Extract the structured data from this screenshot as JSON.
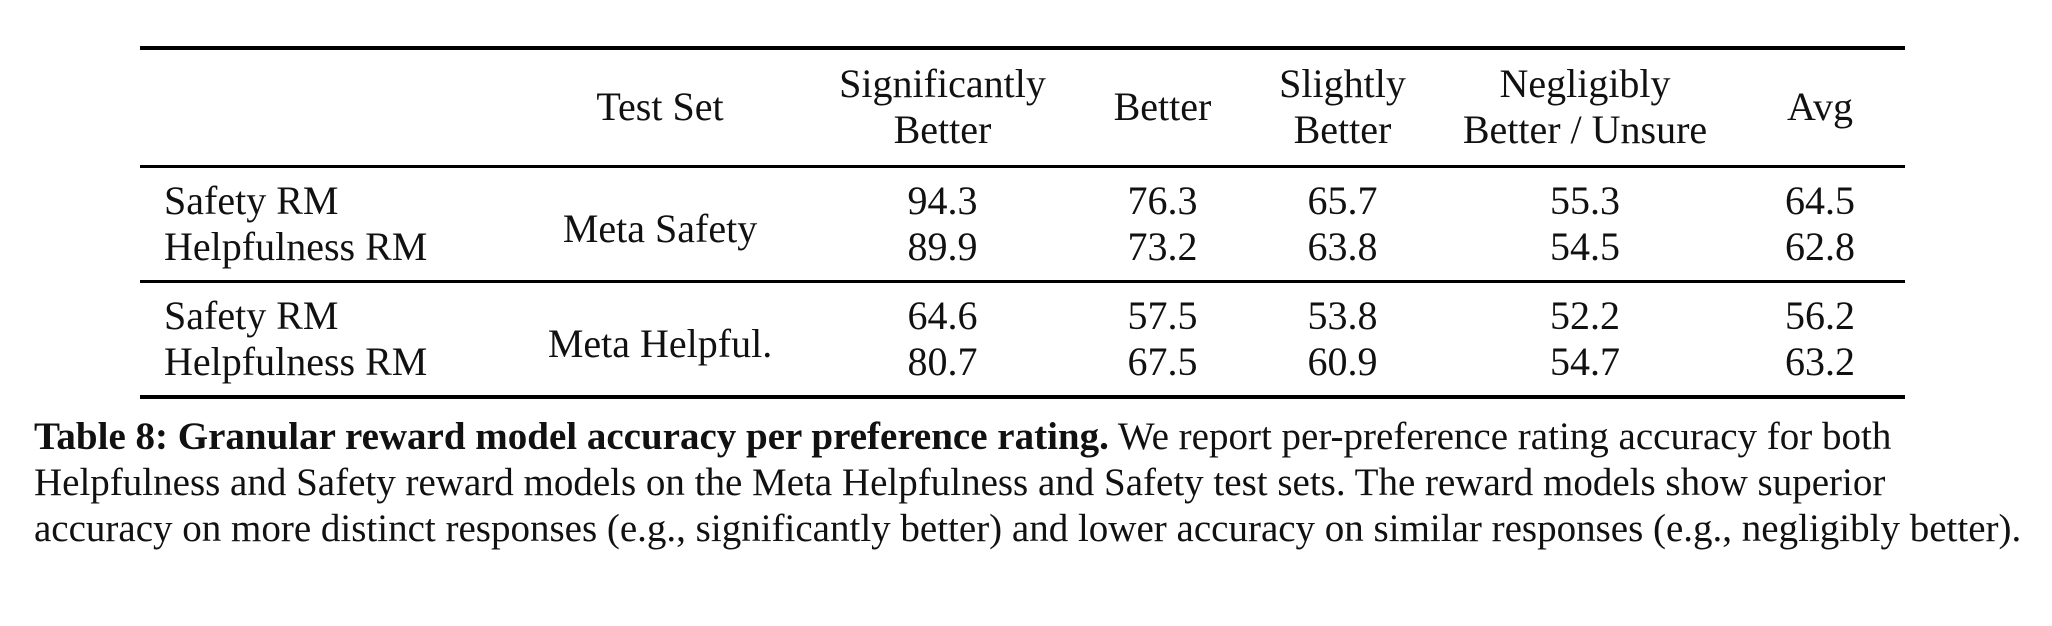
{
  "table": {
    "headers": {
      "model": "",
      "test_set": "Test Set",
      "significantly_better_line1": "Significantly",
      "significantly_better_line2": "Better",
      "better": "Better",
      "slightly_better_line1": "Slightly",
      "slightly_better_line2": "Better",
      "negligibly_line1": "Negligibly",
      "negligibly_line2": "Better / Unsure",
      "avg": "Avg"
    },
    "groups": [
      {
        "test_set": "Meta Safety",
        "rows": [
          {
            "model": "Safety RM",
            "significantly_better": "94.3",
            "better": "76.3",
            "slightly_better": "65.7",
            "negligibly_better": "55.3",
            "avg": "64.5"
          },
          {
            "model": "Helpfulness RM",
            "significantly_better": "89.9",
            "better": "73.2",
            "slightly_better": "63.8",
            "negligibly_better": "54.5",
            "avg": "62.8"
          }
        ]
      },
      {
        "test_set": "Meta Helpful.",
        "rows": [
          {
            "model": "Safety RM",
            "significantly_better": "64.6",
            "better": "57.5",
            "slightly_better": "53.8",
            "negligibly_better": "52.2",
            "avg": "56.2"
          },
          {
            "model": "Helpfulness RM",
            "significantly_better": "80.7",
            "better": "67.5",
            "slightly_better": "60.9",
            "negligibly_better": "54.7",
            "avg": "63.2"
          }
        ]
      }
    ]
  },
  "caption": {
    "label": "Table 8: Granular reward model accuracy per preference rating.",
    "text": "We report per-preference rating accuracy for both Helpfulness and Safety reward models on the Meta Helpfulness and Safety test sets. The reward models show superior accuracy on more distinct responses (e.g., significantly better) and lower accuracy on similar responses (e.g., negligibly better)."
  }
}
